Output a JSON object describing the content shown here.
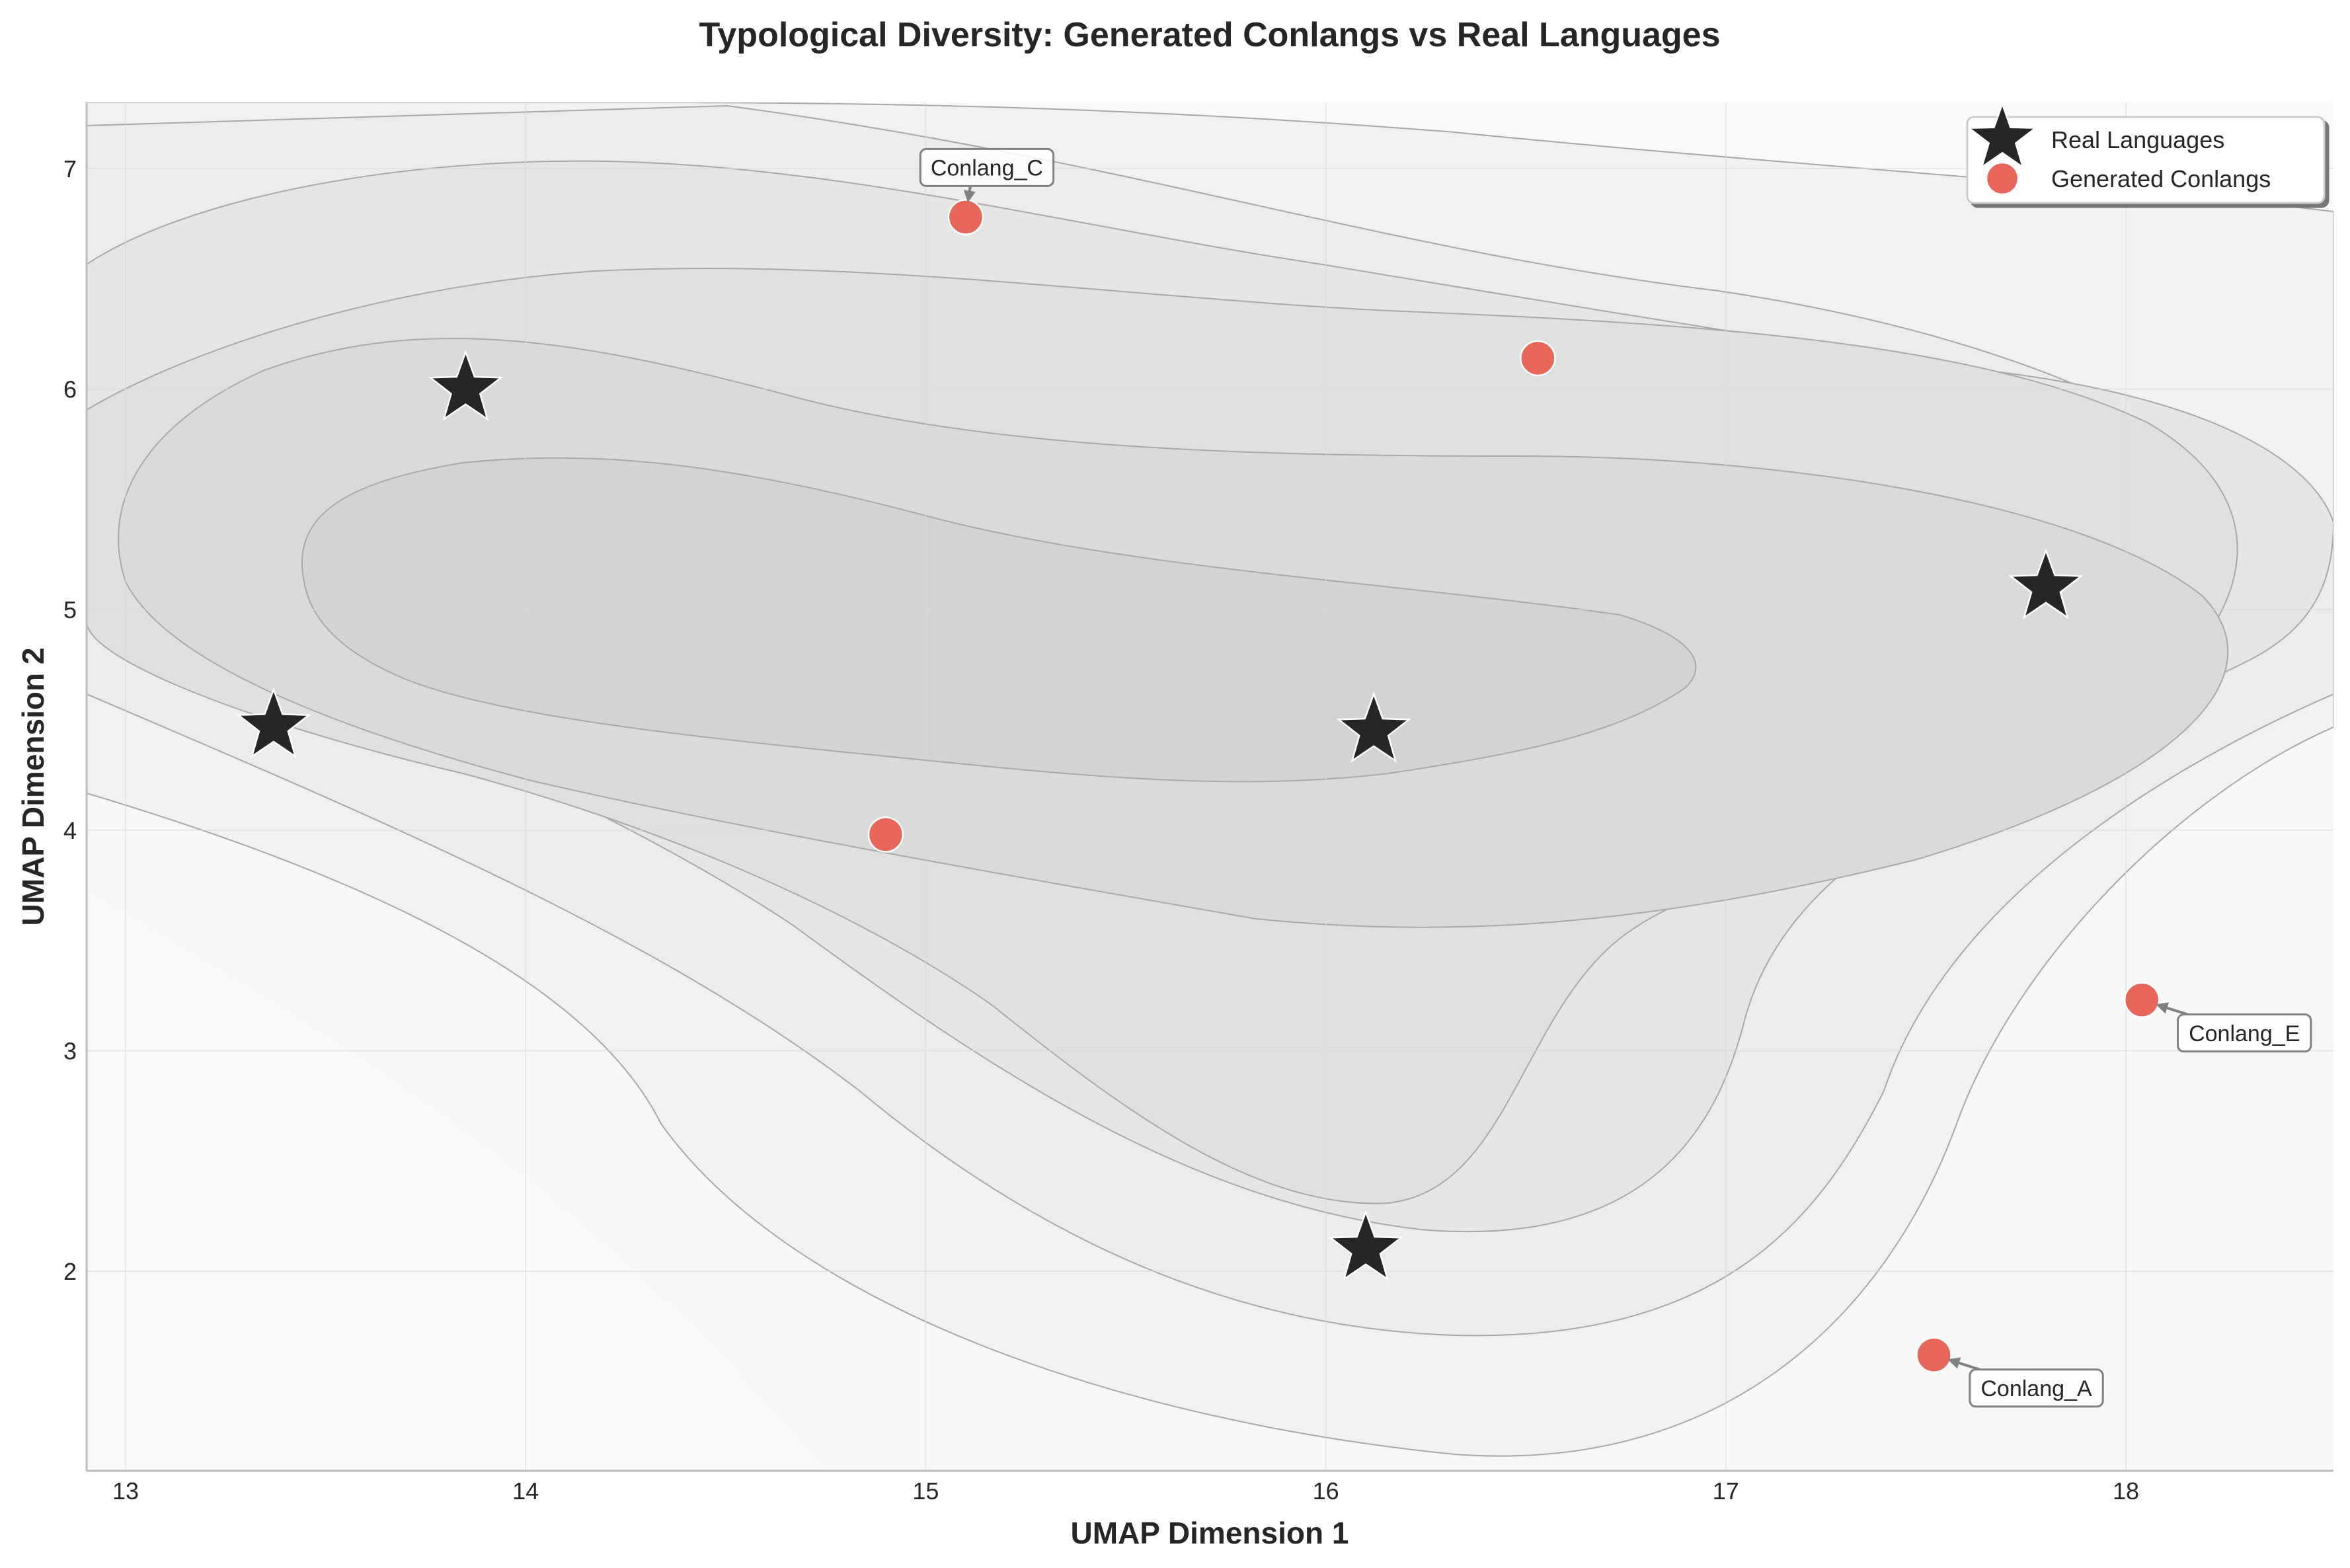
{
  "chart_data": {
    "type": "scatter",
    "title": "Typological Diversity: Generated Conlangs vs Real Languages",
    "xlabel": "UMAP Dimension 1",
    "ylabel": "UMAP Dimension 2",
    "xlim": [
      12.9,
      18.5
    ],
    "ylim": [
      1.1,
      7.3
    ],
    "xticks": [
      "13",
      "14",
      "15",
      "16",
      "17",
      "18"
    ],
    "yticks": [
      "2",
      "3",
      "4",
      "5",
      "6",
      "7"
    ],
    "grid": true,
    "legend_position": "top-right",
    "series": [
      {
        "name": "Real Languages",
        "marker": "star",
        "color": "#262626",
        "points": [
          {
            "x": 13.37,
            "y": 4.47
          },
          {
            "x": 13.85,
            "y": 6.0
          },
          {
            "x": 16.12,
            "y": 4.45
          },
          {
            "x": 16.1,
            "y": 2.1
          },
          {
            "x": 17.8,
            "y": 5.1
          }
        ]
      },
      {
        "name": "Generated Conlangs",
        "marker": "circle",
        "color": "#e8665a",
        "points": [
          {
            "x": 15.1,
            "y": 6.78,
            "label": "Conlang_C"
          },
          {
            "x": 16.53,
            "y": 6.14
          },
          {
            "x": 14.9,
            "y": 3.98
          },
          {
            "x": 18.04,
            "y": 3.23,
            "label": "Conlang_E"
          },
          {
            "x": 17.52,
            "y": 1.62,
            "label": "Conlang_A"
          }
        ]
      }
    ],
    "background": "density contour (gray)"
  }
}
